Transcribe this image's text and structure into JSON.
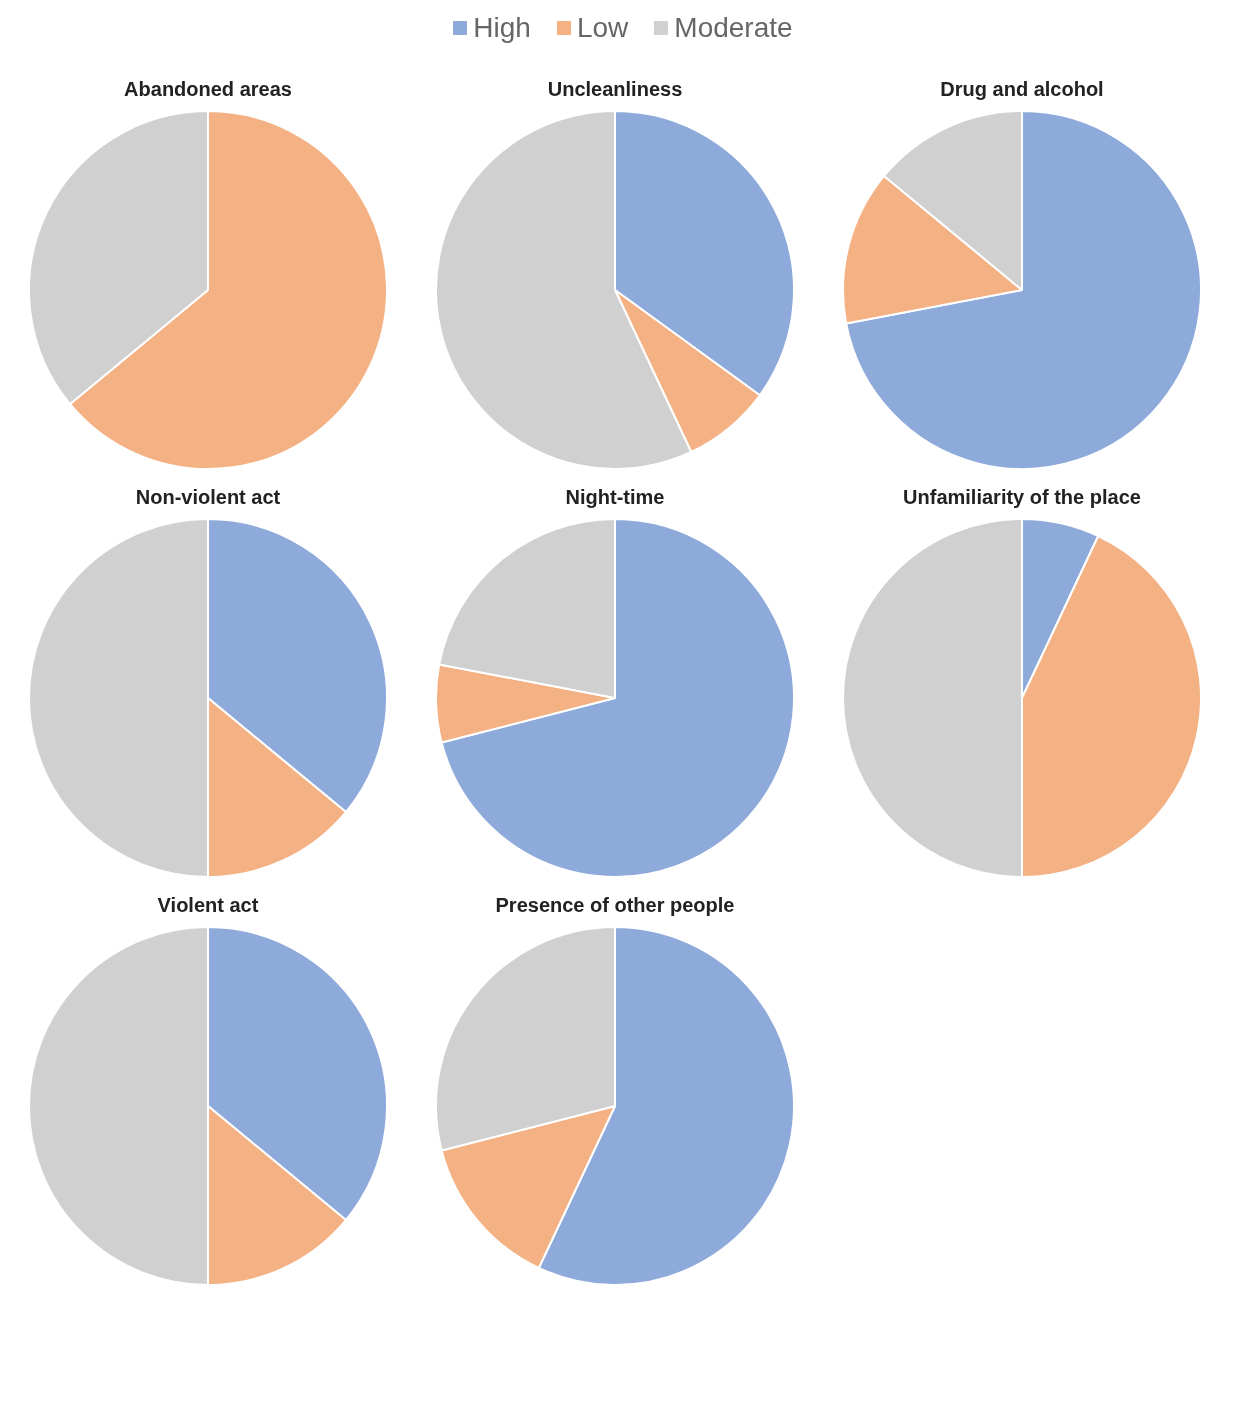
{
  "chart_data": [
    {
      "type": "pie",
      "title": "Abandoned areas",
      "categories": [
        "High",
        "Low",
        "Moderate"
      ],
      "values": [
        0,
        64,
        36
      ],
      "colors": [
        "#8eaadb",
        "#f4b183",
        "#d0d0d0"
      ],
      "legend": "top"
    },
    {
      "type": "pie",
      "title": "Uncleanliness",
      "categories": [
        null,
        null,
        null
      ],
      "values": [
        35,
        8,
        57
      ],
      "colors": [
        "#8eaadb",
        "#f4b183",
        "#d0d0d0"
      ]
    },
    {
      "type": "pie",
      "title": "Drug and alcohol",
      "categories": [
        null,
        null,
        null
      ],
      "values": [
        72,
        14,
        14
      ],
      "colors": [
        "#8eaadb",
        "#f4b183",
        "#d0d0d0"
      ]
    },
    {
      "type": "pie",
      "title": "Non-violent act",
      "categories": [
        null,
        null,
        null
      ],
      "values": [
        36,
        14,
        50
      ],
      "colors": [
        "#8eaadb",
        "#f4b183",
        "#d0d0d0"
      ]
    },
    {
      "type": "pie",
      "title": "Night-time",
      "categories": [
        null,
        null,
        null
      ],
      "values": [
        71,
        7,
        22
      ],
      "colors": [
        "#8eaadb",
        "#f4b183",
        "#d0d0d0"
      ]
    },
    {
      "type": "pie",
      "title": "Unfamiliarity of the place",
      "categories": [
        null,
        null,
        null
      ],
      "values": [
        7,
        43,
        50
      ],
      "colors": [
        "#8eaadb",
        "#f4b183",
        "#d0d0d0"
      ]
    },
    {
      "type": "pie",
      "title": "Violent act",
      "categories": [
        null,
        null,
        null
      ],
      "values": [
        36,
        14,
        50
      ],
      "colors": [
        "#8eaadb",
        "#f4b183",
        "#d0d0d0"
      ]
    },
    {
      "type": "pie",
      "title": "Presence of other people",
      "categories": [
        null,
        null,
        null
      ],
      "values": [
        57,
        14,
        29
      ],
      "colors": [
        "#8eaadb",
        "#f4b183",
        "#d0d0d0"
      ]
    }
  ]
}
